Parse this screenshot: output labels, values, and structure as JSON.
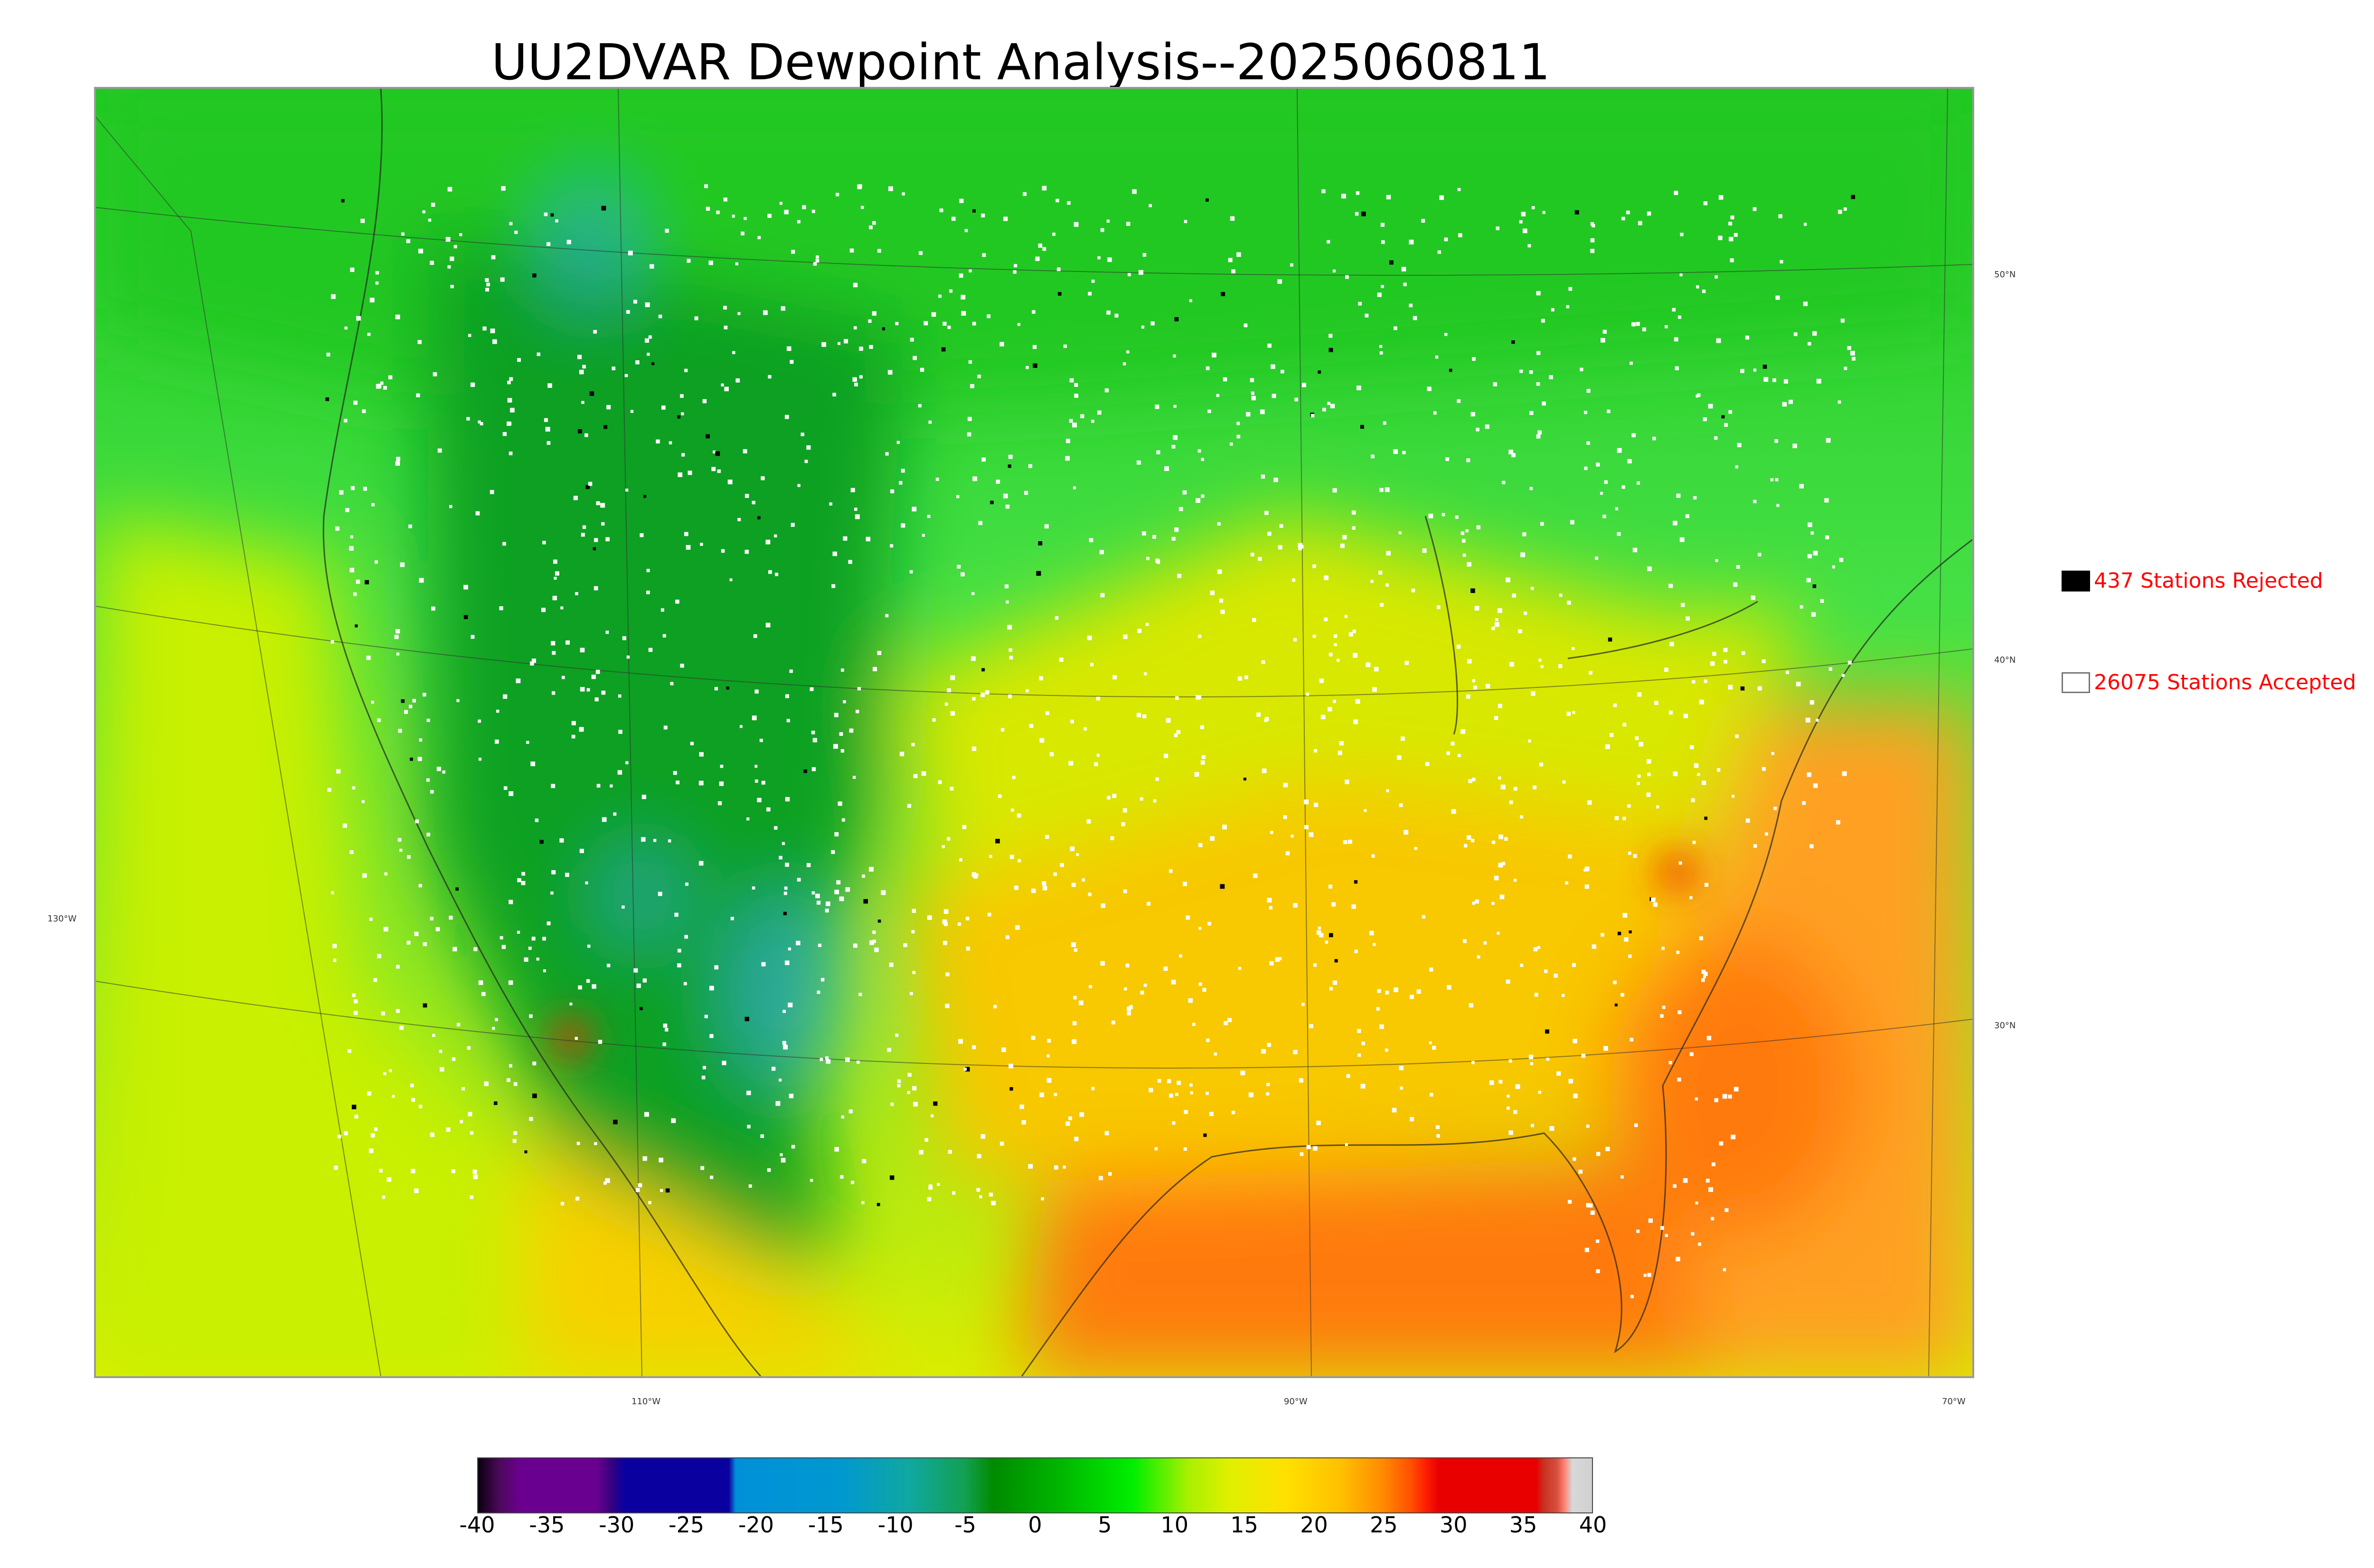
{
  "title": "UU2DVAR Dewpoint Analysis--2025060811",
  "map": {
    "lat_labels": [
      "50°N",
      "40°N",
      "30°N"
    ],
    "lon_labels": [
      "130°W",
      "110°W",
      "90°W",
      "70°W"
    ]
  },
  "legend": {
    "rejected": {
      "label": "437 Stations Rejected",
      "swatch_color": "#000000",
      "text_color": "#ff0000"
    },
    "accepted": {
      "label": "26075 Stations Accepted",
      "swatch_color": "#ffffff",
      "text_color": "#ff0000"
    }
  },
  "colorbar": {
    "min": -40,
    "max": 40,
    "ticks": [
      "-40",
      "-35",
      "-30",
      "-25",
      "-20",
      "-15",
      "-10",
      "-5",
      "0",
      "5",
      "10",
      "15",
      "20",
      "25",
      "30",
      "35",
      "40"
    ],
    "stops": [
      {
        "value": -40,
        "color": "#0a0010"
      },
      {
        "value": -38.5,
        "color": "#4a0a5a"
      },
      {
        "value": -37,
        "color": "#6a0090"
      },
      {
        "value": -31.5,
        "color": "#6a0090"
      },
      {
        "value": -30.5,
        "color": "#3a0080"
      },
      {
        "value": -29.5,
        "color": "#0a00a0"
      },
      {
        "value": -22,
        "color": "#0a00a0"
      },
      {
        "value": -21.5,
        "color": "#0090d8"
      },
      {
        "value": -14,
        "color": "#0098d0"
      },
      {
        "value": -9,
        "color": "#10a8a0"
      },
      {
        "value": -5,
        "color": "#12a050"
      },
      {
        "value": -3,
        "color": "#008a00"
      },
      {
        "value": 2,
        "color": "#00b800"
      },
      {
        "value": 7,
        "color": "#00ee00"
      },
      {
        "value": 11,
        "color": "#a8f000"
      },
      {
        "value": 14,
        "color": "#e0f000"
      },
      {
        "value": 18,
        "color": "#ffe000"
      },
      {
        "value": 22,
        "color": "#ffc000"
      },
      {
        "value": 25,
        "color": "#ff8a00"
      },
      {
        "value": 27,
        "color": "#ff5000"
      },
      {
        "value": 28,
        "color": "#ff2000"
      },
      {
        "value": 29,
        "color": "#e80000"
      },
      {
        "value": 36,
        "color": "#e80000"
      },
      {
        "value": 36.5,
        "color": "#c83020"
      },
      {
        "value": 37.5,
        "color": "#d85040"
      },
      {
        "value": 38,
        "color": "#ff8070"
      },
      {
        "value": 38.6,
        "color": "#d8d8d8"
      },
      {
        "value": 40,
        "color": "#d0d0d0"
      }
    ]
  },
  "field_colors": {
    "far_north": "#22c822",
    "canada": "#18d818",
    "rockies": "#0ea020",
    "plains": "#35e035",
    "pacific": "#c8f000",
    "midwest": "#d8e800",
    "southeast": "#f8c800",
    "gulf": "#ff7a10",
    "atlantic": "#ffa020",
    "dry_blue": "#2aa8a0",
    "hot_spot": "#f03000"
  }
}
